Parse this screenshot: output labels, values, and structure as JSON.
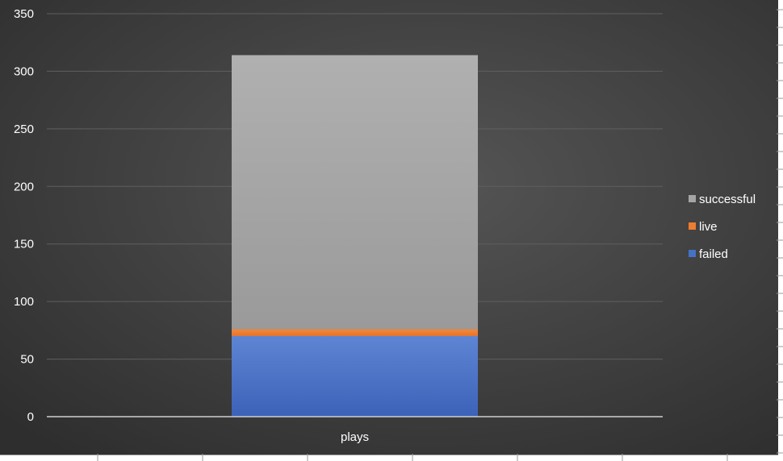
{
  "chart_data": {
    "type": "bar",
    "stacked": true,
    "categories": [
      "plays"
    ],
    "series": [
      {
        "name": "failed",
        "values": [
          70
        ],
        "color": "#4472c4"
      },
      {
        "name": "live",
        "values": [
          6
        ],
        "color": "#ed7d31"
      },
      {
        "name": "successful",
        "values": [
          238
        ],
        "color": "#a5a5a5"
      }
    ],
    "ylim": [
      0,
      350
    ],
    "yticks": [
      0,
      50,
      100,
      150,
      200,
      250,
      300,
      350
    ],
    "grid": true,
    "legend_position": "right",
    "title": "",
    "xlabel": "",
    "ylabel": ""
  }
}
